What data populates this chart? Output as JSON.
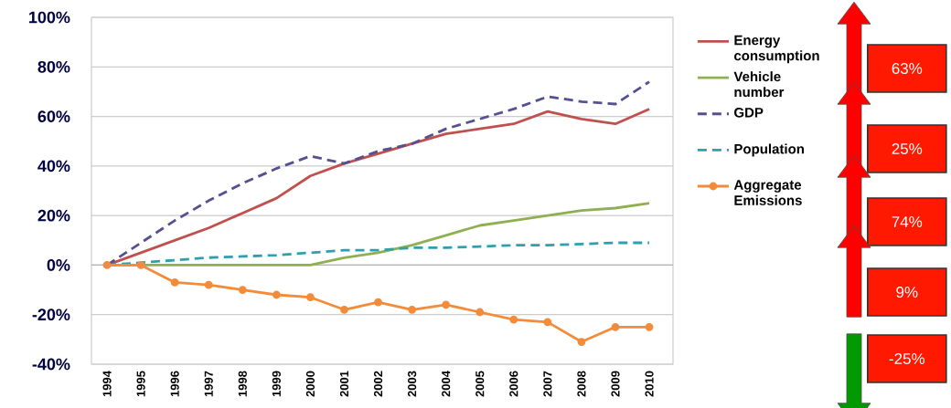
{
  "chart_data": {
    "type": "line",
    "categories": [
      "1994",
      "1995",
      "1996",
      "1997",
      "1998",
      "1999",
      "2000",
      "2001",
      "2002",
      "2003",
      "2004",
      "2005",
      "2006",
      "2007",
      "2008",
      "2009",
      "2010"
    ],
    "series": [
      {
        "name": "Energy consumption",
        "color": "#c0504d",
        "line_style": "solid",
        "values": [
          0,
          5,
          10,
          15,
          21,
          27,
          36,
          41,
          45,
          49,
          53,
          55,
          57,
          62,
          59,
          57,
          63
        ]
      },
      {
        "name": "Vehicle number",
        "color": "#8fb050",
        "line_style": "solid",
        "values": [
          0,
          0,
          0,
          0,
          0,
          0,
          0,
          3,
          5,
          8,
          12,
          16,
          18,
          20,
          22,
          23,
          25
        ]
      },
      {
        "name": "GDP",
        "color": "#55508f",
        "line_style": "dashed",
        "values": [
          0,
          9,
          18,
          26,
          33,
          39,
          44,
          41,
          46,
          49,
          55,
          59,
          63,
          68,
          66,
          65,
          74
        ]
      },
      {
        "name": "Population",
        "color": "#2f9fb0",
        "line_style": "dashed",
        "values": [
          0,
          1,
          2,
          3,
          3.5,
          4,
          5,
          6,
          6,
          7,
          7,
          7.5,
          8,
          8,
          8.5,
          9,
          9
        ]
      },
      {
        "name": "Aggregate Emissions",
        "color": "#f28c3a",
        "line_style": "solid",
        "marker": "circle",
        "values": [
          0,
          0,
          -7,
          -8,
          -10,
          -12,
          -13,
          -18,
          -15,
          -18,
          -16,
          -19,
          -22,
          -23,
          -31,
          -25,
          -25
        ]
      }
    ],
    "ylim": [
      -40,
      100
    ],
    "yticks": [
      {
        "value": -40,
        "label": "-40%"
      },
      {
        "value": -20,
        "label": "-20%"
      },
      {
        "value": 0,
        "label": "0%"
      },
      {
        "value": 20,
        "label": "20%"
      },
      {
        "value": 40,
        "label": "40%"
      },
      {
        "value": 60,
        "label": "60%"
      },
      {
        "value": 80,
        "label": "80%"
      },
      {
        "value": 100,
        "label": "100%"
      }
    ],
    "grid": "y",
    "legend": "right",
    "annotations": [
      "63%",
      "25%",
      "74%",
      "9%",
      "-25%"
    ]
  }
}
